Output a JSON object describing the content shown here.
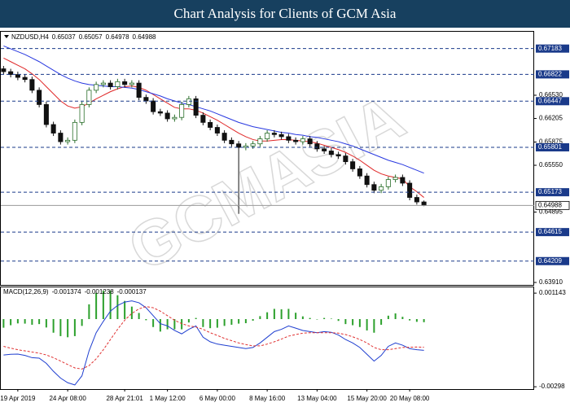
{
  "title": "Chart Analysis for Clients of GCM Asia",
  "watermark": "GCMASIA",
  "chart_data": [
    {
      "type": "candlestick",
      "symbol": "NZDUSD,H4",
      "categories": [
        null,
        null,
        "19 Apr 2019",
        null,
        null,
        null,
        null,
        null,
        null,
        "24 Apr 08:00",
        null,
        null,
        null,
        null,
        null,
        null,
        null,
        "28 Apr 21:01",
        null,
        null,
        null,
        null,
        null,
        "1 May 12:00",
        null,
        null,
        null,
        null,
        null,
        null,
        "6 May 00:00",
        null,
        null,
        null,
        null,
        null,
        null,
        "8 May 16:00",
        null,
        null,
        null,
        null,
        null,
        null,
        "13 May 04:00",
        null,
        null,
        null,
        null,
        null,
        null,
        "15 May 20:00",
        null,
        null,
        null,
        null,
        null,
        "20 May 08:00",
        null,
        null
      ],
      "open": [
        0.669,
        0.6686,
        0.6682,
        0.6678,
        0.6675,
        0.666,
        0.664,
        0.6612,
        0.66,
        0.6588,
        0.659,
        0.6615,
        0.664,
        0.666,
        0.6668,
        0.667,
        0.6665,
        0.6672,
        0.6668,
        0.667,
        0.665,
        0.6645,
        0.663,
        0.6628,
        0.662,
        0.6622,
        0.664,
        0.6648,
        0.6625,
        0.6615,
        0.6608,
        0.66,
        0.659,
        0.6585,
        0.658,
        0.6582,
        0.6585,
        0.6592,
        0.66,
        0.6598,
        0.6595,
        0.659,
        0.6588,
        0.6592,
        0.6585,
        0.6578,
        0.6575,
        0.657,
        0.6568,
        0.656,
        0.655,
        0.654,
        0.6528,
        0.652,
        0.6525,
        0.6535,
        0.6538,
        0.653,
        0.651,
        0.65037
      ],
      "high": [
        0.6694,
        0.669,
        0.6686,
        0.6682,
        0.6679,
        0.6664,
        0.6644,
        0.6616,
        0.6604,
        0.6594,
        0.6619,
        0.6644,
        0.6664,
        0.6672,
        0.6674,
        0.6674,
        0.6676,
        0.6676,
        0.6674,
        0.6674,
        0.6654,
        0.6649,
        0.6634,
        0.6632,
        0.6626,
        0.6644,
        0.6652,
        0.6652,
        0.6629,
        0.6619,
        0.6612,
        0.6604,
        0.6594,
        0.6589,
        0.6586,
        0.6589,
        0.6596,
        0.6604,
        0.6604,
        0.6602,
        0.6599,
        0.6594,
        0.6596,
        0.6596,
        0.6589,
        0.6582,
        0.6579,
        0.6574,
        0.6572,
        0.6564,
        0.6554,
        0.6544,
        0.6532,
        0.6529,
        0.6539,
        0.6542,
        0.6542,
        0.6534,
        0.6514,
        0.65057
      ],
      "low": [
        0.6682,
        0.6678,
        0.6674,
        0.6671,
        0.6656,
        0.6636,
        0.6608,
        0.6596,
        0.6584,
        0.6584,
        0.6586,
        0.6611,
        0.6636,
        0.6656,
        0.6664,
        0.6661,
        0.6661,
        0.6664,
        0.6664,
        0.6646,
        0.6641,
        0.6626,
        0.6624,
        0.6616,
        0.6616,
        0.6618,
        0.6636,
        0.6621,
        0.6611,
        0.6604,
        0.6596,
        0.6586,
        0.6581,
        0.6487,
        0.6576,
        0.6578,
        0.6581,
        0.6588,
        0.6594,
        0.6591,
        0.6586,
        0.6584,
        0.6584,
        0.6581,
        0.6574,
        0.6571,
        0.6566,
        0.6564,
        0.6556,
        0.6546,
        0.6536,
        0.6524,
        0.6516,
        0.6516,
        0.6521,
        0.6531,
        0.6526,
        0.6506,
        0.65,
        0.64978
      ],
      "close": [
        0.6686,
        0.6682,
        0.6678,
        0.6675,
        0.666,
        0.664,
        0.6612,
        0.66,
        0.6588,
        0.659,
        0.6615,
        0.664,
        0.666,
        0.6668,
        0.667,
        0.6665,
        0.6672,
        0.6668,
        0.667,
        0.665,
        0.6645,
        0.663,
        0.6628,
        0.662,
        0.6622,
        0.664,
        0.6648,
        0.6625,
        0.6615,
        0.6608,
        0.66,
        0.659,
        0.6585,
        0.658,
        0.6582,
        0.6585,
        0.6592,
        0.66,
        0.6598,
        0.6595,
        0.659,
        0.6588,
        0.6592,
        0.6585,
        0.6578,
        0.6575,
        0.657,
        0.6568,
        0.656,
        0.655,
        0.654,
        0.6528,
        0.652,
        0.6525,
        0.6535,
        0.6538,
        0.653,
        0.651,
        0.65037,
        0.64988
      ],
      "up_color": "#2a6e2a",
      "down_color": "#111111",
      "lines": [
        {
          "color": "#e02828",
          "values": [
            0.6705,
            0.67,
            0.6695,
            0.669,
            0.6683,
            0.6675,
            0.6665,
            0.6655,
            0.6645,
            0.6638,
            0.6635,
            0.6637,
            0.6642,
            0.6648,
            0.6653,
            0.6658,
            0.6662,
            0.6665,
            0.6666,
            0.6664,
            0.666,
            0.6654,
            0.6648,
            0.6642,
            0.6636,
            0.6634,
            0.6634,
            0.6632,
            0.6628,
            0.6623,
            0.6618,
            0.6612,
            0.6606,
            0.66,
            0.6595,
            0.6591,
            0.6589,
            0.6589,
            0.659,
            0.6591,
            0.6591,
            0.659,
            0.6589,
            0.6588,
            0.6586,
            0.6583,
            0.658,
            0.6577,
            0.6573,
            0.6568,
            0.6562,
            0.6555,
            0.6548,
            0.6543,
            0.654,
            0.6538,
            0.6536,
            0.6525,
            0.6518,
            0.651
          ]
        },
        {
          "color": "#2838e0",
          "values": [
            0.6722,
            0.6718,
            0.6714,
            0.671,
            0.6705,
            0.67,
            0.6694,
            0.6688,
            0.6682,
            0.6677,
            0.6673,
            0.667,
            0.6668,
            0.6667,
            0.6666,
            0.6665,
            0.6665,
            0.6664,
            0.6663,
            0.6661,
            0.6658,
            0.6655,
            0.6652,
            0.6648,
            0.6645,
            0.6642,
            0.664,
            0.6637,
            0.6634,
            0.6631,
            0.6627,
            0.6623,
            0.6619,
            0.6615,
            0.6612,
            0.6609,
            0.6607,
            0.6605,
            0.6603,
            0.6601,
            0.66,
            0.6598,
            0.6597,
            0.6595,
            0.6594,
            0.6592,
            0.659,
            0.6588,
            0.6585,
            0.6582,
            0.6578,
            0.6574,
            0.657,
            0.6566,
            0.6562,
            0.6559,
            0.6556,
            0.6552,
            0.6548,
            0.6544
          ]
        }
      ],
      "levels": [
        0.67183,
        0.66822,
        0.66447,
        0.65801,
        0.65173,
        0.64615,
        0.64209
      ],
      "level_color": "#1a3a8a",
      "ylim": [
        0.63876,
        0.6743
      ],
      "yticks": [
        {
          "value": 0.6653,
          "label": "0.66530"
        },
        0.66205,
        0.65875,
        {
          "value": 0.6555,
          "label": "0.65550"
        },
        0.64895,
        {
          "value": 0.6391,
          "label": "0.63910"
        }
      ]
    },
    {
      "type": "macd",
      "label": "MACD(12,26,9)",
      "lines": [
        {
          "color": "#1f3fd0",
          "dashed": false,
          "values": [
            -0.00158,
            -0.00155,
            -0.00154,
            -0.0016,
            -0.0017,
            -0.00172,
            -0.00195,
            -0.0023,
            -0.0026,
            -0.0028,
            -0.0029,
            -0.0025,
            -0.0014,
            -0.0006,
            -0.0001,
            0.00035,
            0.0006,
            0.00075,
            0.0008,
            0.00072,
            0.0005,
            0.00015,
            -0.0002,
            -0.0003,
            -0.0005,
            -0.00065,
            -0.00045,
            -0.0003,
            -0.0008,
            -0.001,
            -0.0011,
            -0.00115,
            -0.0012,
            -0.00125,
            -0.0013,
            -0.00125,
            -0.00105,
            -0.0008,
            -0.00055,
            -0.00045,
            -0.0003,
            -0.0004,
            -0.0005,
            -0.00055,
            -0.0006,
            -0.00055,
            -0.00058,
            -0.0007,
            -0.0009,
            -0.00105,
            -0.00125,
            -0.00155,
            -0.00185,
            -0.0016,
            -0.0012,
            -0.00105,
            -0.00115,
            -0.0013,
            -0.00135,
            -0.001374
          ]
        },
        {
          "color": "#e03030",
          "dashed": true,
          "values": [
            -0.0012,
            -0.00128,
            -0.00135,
            -0.0014,
            -0.00145,
            -0.0015,
            -0.00158,
            -0.0017,
            -0.00185,
            -0.002,
            -0.00215,
            -0.0022,
            -0.00205,
            -0.00175,
            -0.00135,
            -0.0009,
            -0.00045,
            -5e-05,
            0.00025,
            0.00045,
            0.00055,
            0.0005,
            0.00035,
            0.00015,
            -5e-05,
            -0.0002,
            -0.0003,
            -0.00035,
            -0.00045,
            -0.0006,
            -0.00072,
            -0.00085,
            -0.00095,
            -0.00105,
            -0.00112,
            -0.00118,
            -0.00118,
            -0.0011,
            -0.001,
            -0.00088,
            -0.00075,
            -0.00068,
            -0.00062,
            -0.0006,
            -0.0006,
            -0.0006,
            -0.0006,
            -0.00062,
            -0.00068,
            -0.00078,
            -0.0009,
            -0.00105,
            -0.00125,
            -0.00135,
            -0.00135,
            -0.0013,
            -0.00125,
            -0.00124,
            -0.00123,
            -0.001238
          ]
        }
      ],
      "histogram": {
        "color": "#2ca02c",
        "values": [
          -0.00038,
          -0.00027,
          -0.00019,
          -0.0002,
          -0.00025,
          -0.00022,
          -0.00037,
          -0.0006,
          -0.00075,
          -0.0008,
          -0.00075,
          -0.0003,
          0.00065,
          0.00115,
          0.00125,
          0.00125,
          0.00105,
          0.0008,
          0.00055,
          0.00027,
          -5e-05,
          -0.00035,
          -0.00055,
          -0.00045,
          -0.00045,
          -0.00045,
          -0.00015,
          5e-05,
          -0.00035,
          -0.0004,
          -0.00038,
          -0.0003,
          -0.00025,
          -0.0002,
          -0.00018,
          -7e-05,
          0.00013,
          0.0003,
          0.00045,
          0.00043,
          0.00045,
          0.00028,
          0.00012,
          5e-05,
          0,
          5e-05,
          2e-05,
          -8e-05,
          -0.00022,
          -0.00027,
          -0.00035,
          -0.0005,
          -0.0006,
          -0.00025,
          0.00015,
          0.00025,
          0.0001,
          -6e-05,
          -0.00012,
          -0.000137
        ]
      },
      "ylim": [
        -0.003083,
        0.001434
      ],
      "yticks": [
        0.001143,
        -0.00298
      ]
    }
  ]
}
